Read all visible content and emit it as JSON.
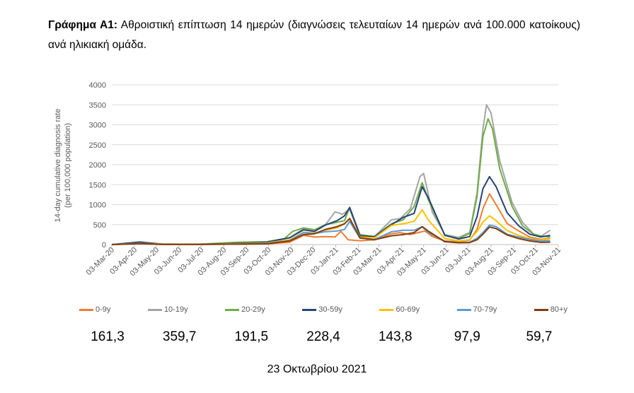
{
  "caption": {
    "label": "Γράφημα Α1:",
    "text": "Αθροιστική επίπτωση 14 ημερών (διαγνώσεις τελευταίων 14 ημερών ανά 100.000 κατοίκους) ανά ηλικιακή ομάδα."
  },
  "footer_date": "23 Οκτωβρίου 2021",
  "chart_data": {
    "type": "line",
    "ylabel_line1": "14-day cumulative diagnosis rate",
    "ylabel_line2": "(per 100,000 population)",
    "ylim": [
      0,
      4000
    ],
    "yticks": [
      0,
      500,
      1000,
      1500,
      2000,
      2500,
      3000,
      3500,
      4000
    ],
    "xlim": [
      "2020-03-03",
      "2021-11-03"
    ],
    "xticks": [
      "03-Mar-20",
      "03-Apr-20",
      "03-May-20",
      "03-Jun-20",
      "03-Jul-20",
      "03-Aug-20",
      "03-Sep-20",
      "03-Oct-20",
      "03-Nov-20",
      "03-Dec-20",
      "03-Jan-21",
      "03-Feb-21",
      "03-Mar-21",
      "03-Apr-21",
      "03-May-21",
      "03-Jun-21",
      "03-Jul-21",
      "03-Aug-21",
      "03-Sep-21",
      "03-Oct-21",
      "03-Nov-21"
    ],
    "grid": "horizontal",
    "legend_position": "bottom",
    "series": [
      {
        "name": "0-9y",
        "color": "#ED7D31",
        "current": "161,3",
        "points": [
          [
            "2020-03-03",
            0
          ],
          [
            "2020-04-10",
            20
          ],
          [
            "2020-05-10",
            5
          ],
          [
            "2020-07-01",
            3
          ],
          [
            "2020-08-25",
            10
          ],
          [
            "2020-10-01",
            18
          ],
          [
            "2020-11-01",
            60
          ],
          [
            "2020-11-20",
            230
          ],
          [
            "2020-12-05",
            190
          ],
          [
            "2020-12-20",
            200
          ],
          [
            "2021-01-02",
            190
          ],
          [
            "2021-01-10",
            330
          ],
          [
            "2021-01-20",
            120
          ],
          [
            "2021-02-05",
            95
          ],
          [
            "2021-02-25",
            120
          ],
          [
            "2021-03-20",
            270
          ],
          [
            "2021-04-01",
            300
          ],
          [
            "2021-04-15",
            250
          ],
          [
            "2021-04-28",
            310
          ],
          [
            "2021-05-05",
            340
          ],
          [
            "2021-05-15",
            200
          ],
          [
            "2021-06-01",
            90
          ],
          [
            "2021-06-20",
            75
          ],
          [
            "2021-07-05",
            110
          ],
          [
            "2021-07-15",
            380
          ],
          [
            "2021-07-23",
            900
          ],
          [
            "2021-08-01",
            1270
          ],
          [
            "2021-08-10",
            1000
          ],
          [
            "2021-08-25",
            530
          ],
          [
            "2021-09-10",
            340
          ],
          [
            "2021-09-25",
            190
          ],
          [
            "2021-10-10",
            130
          ],
          [
            "2021-10-23",
            160
          ]
        ]
      },
      {
        "name": "10-19y",
        "color": "#A5A5A5",
        "current": "359,7",
        "points": [
          [
            "2020-03-03",
            0
          ],
          [
            "2020-04-10",
            70
          ],
          [
            "2020-05-10",
            10
          ],
          [
            "2020-07-01",
            5
          ],
          [
            "2020-08-25",
            30
          ],
          [
            "2020-10-01",
            70
          ],
          [
            "2020-11-01",
            170
          ],
          [
            "2020-11-20",
            400
          ],
          [
            "2020-12-05",
            370
          ],
          [
            "2020-12-20",
            500
          ],
          [
            "2021-01-02",
            820
          ],
          [
            "2021-01-12",
            760
          ],
          [
            "2021-01-22",
            880
          ],
          [
            "2021-02-05",
            230
          ],
          [
            "2021-02-25",
            200
          ],
          [
            "2021-03-20",
            620
          ],
          [
            "2021-04-01",
            650
          ],
          [
            "2021-04-15",
            900
          ],
          [
            "2021-04-28",
            1700
          ],
          [
            "2021-05-03",
            1780
          ],
          [
            "2021-05-15",
            800
          ],
          [
            "2021-06-01",
            250
          ],
          [
            "2021-06-20",
            180
          ],
          [
            "2021-07-05",
            300
          ],
          [
            "2021-07-15",
            1300
          ],
          [
            "2021-07-23",
            2900
          ],
          [
            "2021-07-28",
            3500
          ],
          [
            "2021-08-03",
            3300
          ],
          [
            "2021-08-15",
            2100
          ],
          [
            "2021-09-01",
            1050
          ],
          [
            "2021-09-15",
            560
          ],
          [
            "2021-09-30",
            270
          ],
          [
            "2021-10-10",
            200
          ],
          [
            "2021-10-23",
            360
          ]
        ]
      },
      {
        "name": "20-29y",
        "color": "#70AD47",
        "current": "191,5",
        "points": [
          [
            "2020-03-03",
            0
          ],
          [
            "2020-04-10",
            30
          ],
          [
            "2020-05-10",
            10
          ],
          [
            "2020-07-01",
            10
          ],
          [
            "2020-08-25",
            60
          ],
          [
            "2020-10-01",
            70
          ],
          [
            "2020-10-25",
            150
          ],
          [
            "2020-11-05",
            330
          ],
          [
            "2020-11-20",
            420
          ],
          [
            "2020-12-05",
            370
          ],
          [
            "2020-12-20",
            500
          ],
          [
            "2021-01-05",
            560
          ],
          [
            "2021-01-15",
            600
          ],
          [
            "2021-01-22",
            930
          ],
          [
            "2021-02-05",
            250
          ],
          [
            "2021-02-25",
            200
          ],
          [
            "2021-03-20",
            520
          ],
          [
            "2021-04-05",
            620
          ],
          [
            "2021-04-20",
            950
          ],
          [
            "2021-05-01",
            1550
          ],
          [
            "2021-05-10",
            1100
          ],
          [
            "2021-06-01",
            230
          ],
          [
            "2021-06-20",
            150
          ],
          [
            "2021-07-05",
            280
          ],
          [
            "2021-07-15",
            1200
          ],
          [
            "2021-07-23",
            2700
          ],
          [
            "2021-07-30",
            3150
          ],
          [
            "2021-08-05",
            2900
          ],
          [
            "2021-08-15",
            1900
          ],
          [
            "2021-09-01",
            950
          ],
          [
            "2021-09-15",
            470
          ],
          [
            "2021-09-30",
            260
          ],
          [
            "2021-10-10",
            220
          ],
          [
            "2021-10-23",
            190
          ]
        ]
      },
      {
        "name": "30-59y",
        "color": "#264478",
        "current": "228,4",
        "points": [
          [
            "2020-03-03",
            0
          ],
          [
            "2020-04-10",
            60
          ],
          [
            "2020-05-10",
            15
          ],
          [
            "2020-07-01",
            5
          ],
          [
            "2020-08-25",
            30
          ],
          [
            "2020-10-01",
            60
          ],
          [
            "2020-11-01",
            170
          ],
          [
            "2020-11-20",
            370
          ],
          [
            "2020-12-05",
            330
          ],
          [
            "2020-12-20",
            490
          ],
          [
            "2021-01-05",
            600
          ],
          [
            "2021-01-15",
            720
          ],
          [
            "2021-01-22",
            930
          ],
          [
            "2021-02-05",
            220
          ],
          [
            "2021-02-25",
            200
          ],
          [
            "2021-03-20",
            500
          ],
          [
            "2021-04-05",
            680
          ],
          [
            "2021-04-20",
            780
          ],
          [
            "2021-05-01",
            1450
          ],
          [
            "2021-05-10",
            1150
          ],
          [
            "2021-06-01",
            230
          ],
          [
            "2021-06-20",
            140
          ],
          [
            "2021-07-05",
            200
          ],
          [
            "2021-07-15",
            700
          ],
          [
            "2021-07-23",
            1400
          ],
          [
            "2021-08-01",
            1700
          ],
          [
            "2021-08-10",
            1450
          ],
          [
            "2021-08-25",
            800
          ],
          [
            "2021-09-10",
            470
          ],
          [
            "2021-09-25",
            260
          ],
          [
            "2021-10-10",
            190
          ],
          [
            "2021-10-23",
            230
          ]
        ]
      },
      {
        "name": "60-69y",
        "color": "#FFC000",
        "current": "143,8",
        "points": [
          [
            "2020-03-03",
            0
          ],
          [
            "2020-04-10",
            30
          ],
          [
            "2020-05-10",
            10
          ],
          [
            "2020-07-01",
            5
          ],
          [
            "2020-08-25",
            20
          ],
          [
            "2020-10-01",
            40
          ],
          [
            "2020-11-01",
            120
          ],
          [
            "2020-11-20",
            310
          ],
          [
            "2020-12-05",
            290
          ],
          [
            "2020-12-20",
            360
          ],
          [
            "2021-01-05",
            420
          ],
          [
            "2021-01-15",
            520
          ],
          [
            "2021-01-22",
            660
          ],
          [
            "2021-02-05",
            190
          ],
          [
            "2021-02-25",
            170
          ],
          [
            "2021-03-20",
            480
          ],
          [
            "2021-04-05",
            520
          ],
          [
            "2021-04-20",
            580
          ],
          [
            "2021-05-01",
            870
          ],
          [
            "2021-05-10",
            600
          ],
          [
            "2021-06-01",
            150
          ],
          [
            "2021-06-20",
            90
          ],
          [
            "2021-07-05",
            120
          ],
          [
            "2021-07-15",
            330
          ],
          [
            "2021-07-23",
            560
          ],
          [
            "2021-08-01",
            720
          ],
          [
            "2021-08-10",
            600
          ],
          [
            "2021-08-25",
            350
          ],
          [
            "2021-09-10",
            230
          ],
          [
            "2021-09-25",
            150
          ],
          [
            "2021-10-10",
            110
          ],
          [
            "2021-10-23",
            145
          ]
        ]
      },
      {
        "name": "70-79y",
        "color": "#5B9BD5",
        "current": "97,9",
        "points": [
          [
            "2020-03-03",
            0
          ],
          [
            "2020-04-10",
            30
          ],
          [
            "2020-05-10",
            5
          ],
          [
            "2020-07-01",
            3
          ],
          [
            "2020-08-25",
            15
          ],
          [
            "2020-10-01",
            30
          ],
          [
            "2020-11-01",
            100
          ],
          [
            "2020-11-20",
            300
          ],
          [
            "2020-12-05",
            280
          ],
          [
            "2020-12-20",
            320
          ],
          [
            "2021-01-05",
            340
          ],
          [
            "2021-01-15",
            380
          ],
          [
            "2021-01-22",
            580
          ],
          [
            "2021-02-05",
            160
          ],
          [
            "2021-02-25",
            130
          ],
          [
            "2021-03-20",
            320
          ],
          [
            "2021-04-05",
            360
          ],
          [
            "2021-04-20",
            360
          ],
          [
            "2021-05-01",
            440
          ],
          [
            "2021-05-10",
            300
          ],
          [
            "2021-06-01",
            80
          ],
          [
            "2021-06-20",
            50
          ],
          [
            "2021-07-05",
            60
          ],
          [
            "2021-07-15",
            160
          ],
          [
            "2021-07-23",
            300
          ],
          [
            "2021-08-01",
            490
          ],
          [
            "2021-08-10",
            450
          ],
          [
            "2021-08-25",
            260
          ],
          [
            "2021-09-10",
            190
          ],
          [
            "2021-09-25",
            130
          ],
          [
            "2021-10-10",
            90
          ],
          [
            "2021-10-23",
            98
          ]
        ]
      },
      {
        "name": "80+y",
        "color": "#843C0C",
        "current": "59,7",
        "points": [
          [
            "2020-03-03",
            0
          ],
          [
            "2020-04-10",
            25
          ],
          [
            "2020-05-10",
            5
          ],
          [
            "2020-07-01",
            3
          ],
          [
            "2020-08-25",
            10
          ],
          [
            "2020-10-01",
            20
          ],
          [
            "2020-11-01",
            90
          ],
          [
            "2020-11-20",
            250
          ],
          [
            "2020-12-05",
            270
          ],
          [
            "2020-12-20",
            380
          ],
          [
            "2021-01-05",
            450
          ],
          [
            "2021-01-15",
            520
          ],
          [
            "2021-01-22",
            650
          ],
          [
            "2021-02-05",
            170
          ],
          [
            "2021-02-25",
            120
          ],
          [
            "2021-03-20",
            220
          ],
          [
            "2021-04-05",
            250
          ],
          [
            "2021-04-20",
            300
          ],
          [
            "2021-05-01",
            450
          ],
          [
            "2021-05-10",
            330
          ],
          [
            "2021-06-01",
            70
          ],
          [
            "2021-06-20",
            45
          ],
          [
            "2021-07-05",
            50
          ],
          [
            "2021-07-15",
            120
          ],
          [
            "2021-07-23",
            260
          ],
          [
            "2021-08-01",
            440
          ],
          [
            "2021-08-10",
            400
          ],
          [
            "2021-08-25",
            240
          ],
          [
            "2021-09-10",
            150
          ],
          [
            "2021-09-25",
            90
          ],
          [
            "2021-10-10",
            55
          ],
          [
            "2021-10-23",
            60
          ]
        ]
      }
    ]
  }
}
